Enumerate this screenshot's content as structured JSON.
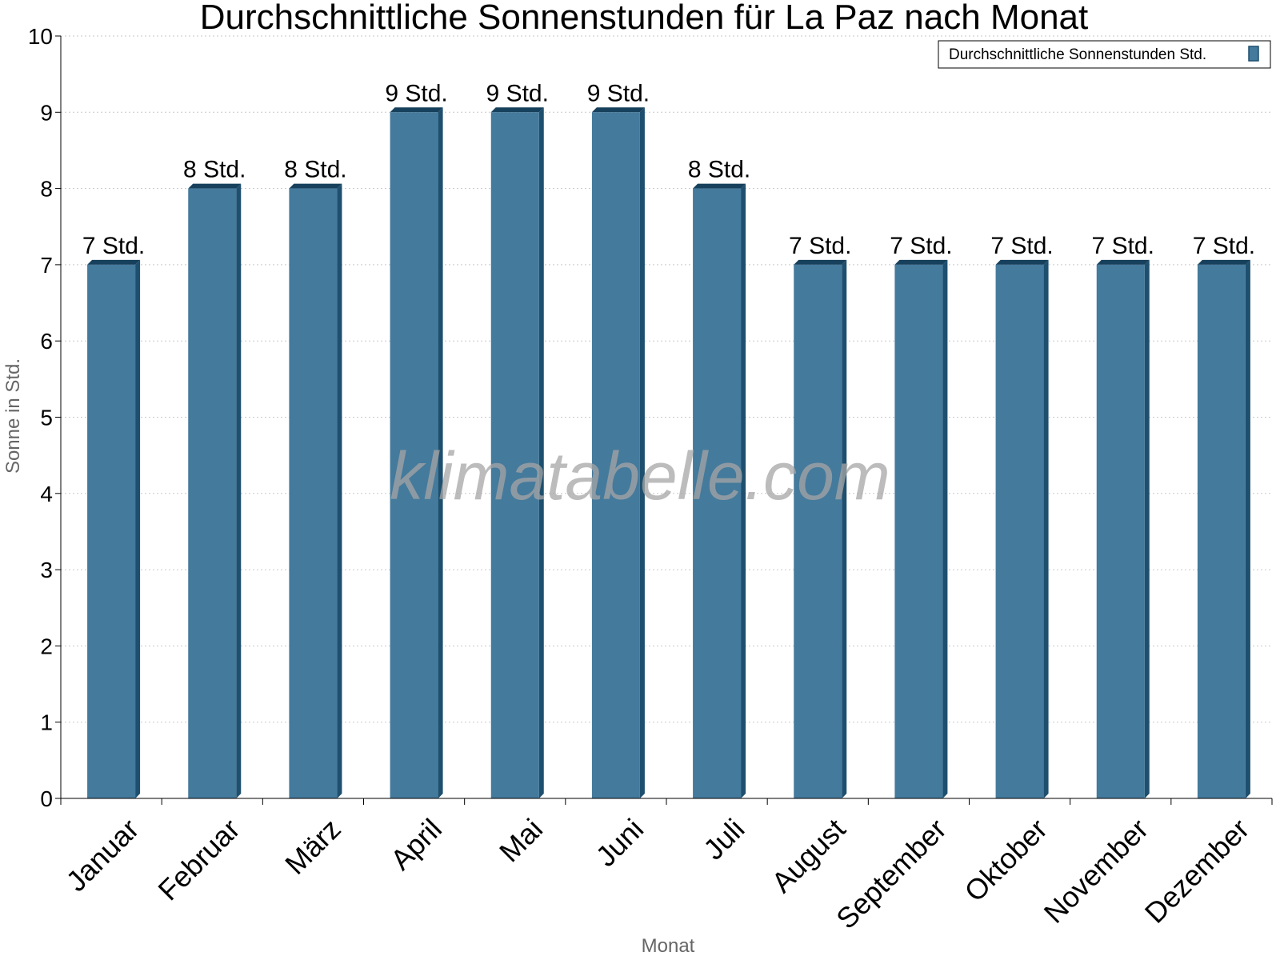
{
  "chart_data": {
    "type": "bar",
    "title": "Durchschnittliche Sonnenstunden für La Paz nach Monat",
    "xlabel": "Monat",
    "ylabel": "Sonne in Std.",
    "ylim": [
      0,
      10
    ],
    "yticks": [
      "0",
      "1",
      "2",
      "3",
      "4",
      "5",
      "6",
      "7",
      "8",
      "9",
      "10"
    ],
    "categories": [
      "Januar",
      "Februar",
      "März",
      "April",
      "Mai",
      "Juni",
      "Juli",
      "August",
      "September",
      "Oktober",
      "November",
      "Dezember"
    ],
    "series": [
      {
        "name": "Durchschnittliche Sonnenstunden Std.",
        "values": [
          7,
          8,
          8,
          9,
          9,
          9,
          8,
          7,
          7,
          7,
          7,
          7
        ],
        "labels": [
          "7 Std.",
          "8 Std.",
          "8 Std.",
          "9 Std.",
          "9 Std.",
          "9 Std.",
          "8 Std.",
          "7 Std.",
          "7 Std.",
          "7 Std.",
          "7 Std.",
          "7 Std."
        ]
      }
    ],
    "grid": true,
    "legend_position": "top-right",
    "colors": {
      "bar": "#447a9c",
      "bar_side": "#1e4f6e",
      "bar_top": "#16405c"
    }
  },
  "watermark": "klimatabelle.com"
}
